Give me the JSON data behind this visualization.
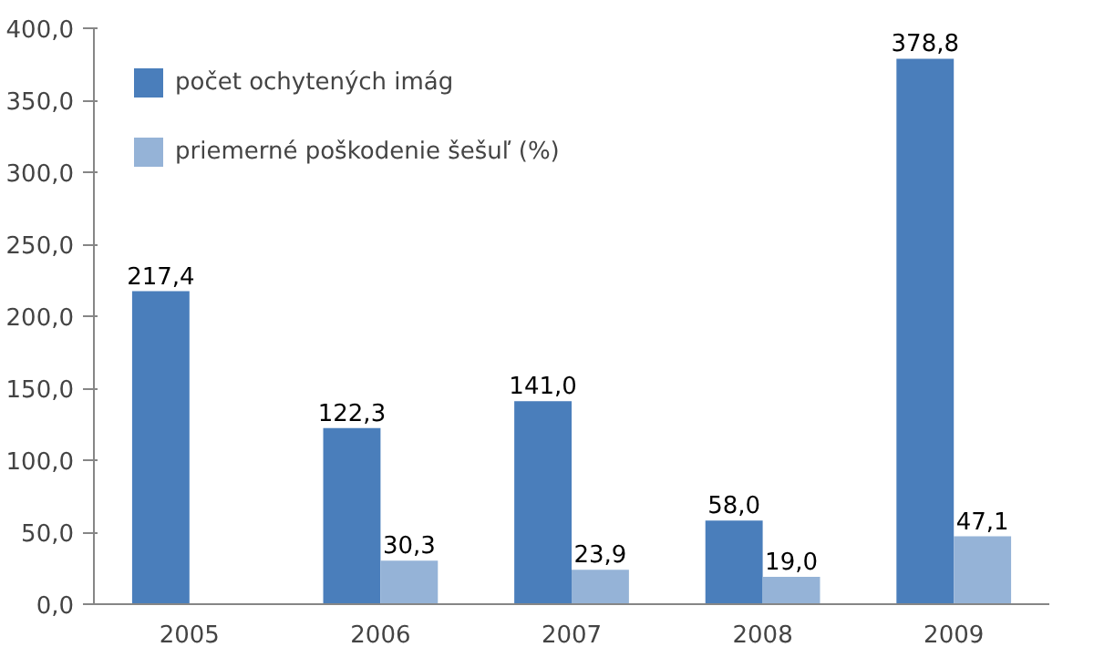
{
  "chart_data": {
    "type": "bar",
    "categories": [
      "2005",
      "2006",
      "2007",
      "2008",
      "2009"
    ],
    "series": [
      {
        "name": "počet ochytených imág",
        "color": "#4a7ebb",
        "values": [
          217.4,
          122.3,
          141.0,
          58.0,
          378.8
        ],
        "value_labels": [
          "217,4",
          "122,3",
          "141,0",
          "58,0",
          "378,8"
        ]
      },
      {
        "name": "priemerné poškodenie šešuľ (%)",
        "color": "#95b3d7",
        "values": [
          null,
          30.3,
          23.9,
          19.0,
          47.1
        ],
        "value_labels": [
          null,
          "30,3",
          "23,9",
          "19,0",
          "47,1"
        ]
      }
    ],
    "ylim": [
      0,
      400
    ],
    "yticks": [
      {
        "value": 0,
        "label": "0,0"
      },
      {
        "value": 50,
        "label": "50,0"
      },
      {
        "value": 100,
        "label": "100,0"
      },
      {
        "value": 150,
        "label": "150,0"
      },
      {
        "value": 200,
        "label": "200,0"
      },
      {
        "value": 250,
        "label": "250,0"
      },
      {
        "value": 300,
        "label": "300,0"
      },
      {
        "value": 350,
        "label": "350,0"
      },
      {
        "value": 400,
        "label": "400,0"
      }
    ],
    "grid": false,
    "legend": "top left"
  }
}
